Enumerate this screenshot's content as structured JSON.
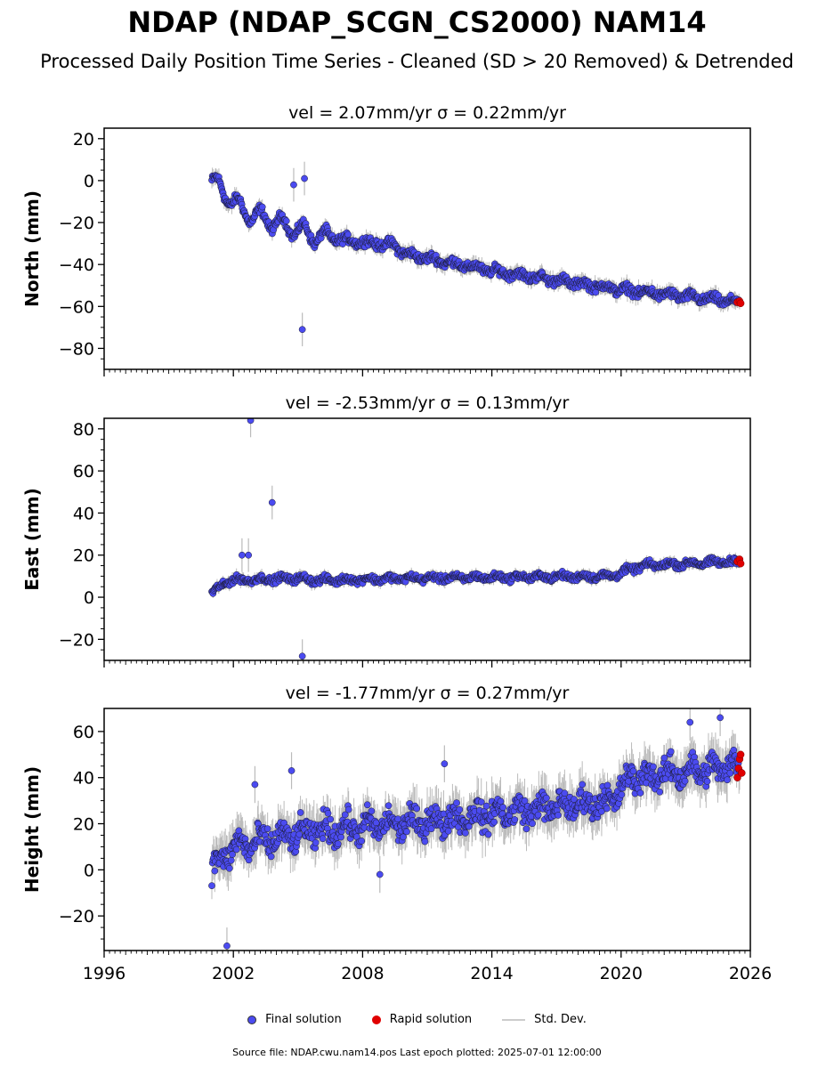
{
  "title": "NDAP (NDAP_SCGN_CS2000) NAM14",
  "subtitle": "Processed Daily Position Time Series - Cleaned (SD > 20 Removed) & Detrended",
  "legend": {
    "final_label": "Final solution",
    "rapid_label": "Rapid solution",
    "std_label": "Std. Dev."
  },
  "footer": "Source file: NDAP.cwu.nam14.pos  Last epoch plotted: 2025-07-01 12:00:00",
  "colors": {
    "final": "#4b4bf0",
    "rapid": "#e00000",
    "std": "#bbbbbb",
    "edge": "#1a1a2e"
  },
  "chart_data": [
    {
      "type": "scatter",
      "title": "vel = 2.07mm/yr   σ = 0.22mm/yr",
      "ylabel": "North (mm)",
      "xlim": [
        1996,
        2026
      ],
      "ylim": [
        -90,
        25
      ],
      "yticks": [
        "20",
        "0",
        "−20",
        "−40",
        "−60",
        "−80"
      ],
      "ytick_values": [
        20,
        0,
        -20,
        -40,
        -60,
        -80
      ],
      "trend": [
        [
          2001.0,
          0
        ],
        [
          2002.5,
          -15
        ],
        [
          2004.0,
          -20
        ],
        [
          2006.0,
          -27
        ],
        [
          2009.5,
          -31
        ],
        [
          2010.0,
          -35
        ],
        [
          2014.0,
          -43
        ],
        [
          2020.0,
          -52
        ],
        [
          2025.5,
          -58
        ]
      ],
      "scatter": 3.0,
      "outliers": [
        [
          2005.2,
          -71
        ],
        [
          2005.3,
          1
        ],
        [
          2004.8,
          -2
        ]
      ],
      "rapid": [
        [
          2025.4,
          -58
        ],
        [
          2025.5,
          -57.5
        ],
        [
          2025.55,
          -58.5
        ]
      ]
    },
    {
      "type": "scatter",
      "title": "vel = -2.53mm/yr   σ = 0.13mm/yr",
      "ylabel": "East (mm)",
      "xlim": [
        1996,
        2026
      ],
      "ylim": [
        -30,
        85
      ],
      "yticks": [
        "80",
        "60",
        "40",
        "20",
        "0",
        "−20"
      ],
      "ytick_values": [
        80,
        60,
        40,
        20,
        0,
        -20
      ],
      "trend": [
        [
          2001.0,
          2
        ],
        [
          2001.8,
          8
        ],
        [
          2005.0,
          9
        ],
        [
          2006.0,
          8
        ],
        [
          2010.0,
          9
        ],
        [
          2019.5,
          10
        ],
        [
          2021.0,
          15
        ],
        [
          2025.5,
          17
        ]
      ],
      "scatter": 2.2,
      "outliers": [
        [
          2002.8,
          84
        ],
        [
          2003.8,
          45
        ],
        [
          2005.2,
          -28
        ],
        [
          2002.4,
          20
        ],
        [
          2002.7,
          20
        ]
      ],
      "rapid": [
        [
          2025.4,
          17
        ],
        [
          2025.5,
          18
        ],
        [
          2025.55,
          16
        ]
      ]
    },
    {
      "type": "scatter",
      "title": "vel = -1.77mm/yr   σ = 0.27mm/yr",
      "ylabel": "Height (mm)",
      "xlim": [
        1996,
        2026
      ],
      "ylim": [
        -35,
        70
      ],
      "yticks": [
        "60",
        "40",
        "20",
        "0",
        "−20"
      ],
      "ytick_values": [
        60,
        40,
        20,
        0,
        -20
      ],
      "trend": [
        [
          2001.0,
          0
        ],
        [
          2002.0,
          10
        ],
        [
          2006.0,
          17
        ],
        [
          2010.0,
          20
        ],
        [
          2019.5,
          30
        ],
        [
          2020.5,
          40
        ],
        [
          2025.5,
          45
        ]
      ],
      "scatter": 8.0,
      "outliers": [
        [
          2001.7,
          -33
        ],
        [
          2003.0,
          37
        ],
        [
          2004.7,
          43
        ],
        [
          2011.8,
          46
        ],
        [
          2023.2,
          64
        ],
        [
          2024.6,
          66
        ],
        [
          2008.8,
          -2
        ]
      ],
      "rapid": [
        [
          2025.4,
          40
        ],
        [
          2025.45,
          44
        ],
        [
          2025.5,
          48
        ],
        [
          2025.55,
          50
        ],
        [
          2025.6,
          42
        ]
      ]
    }
  ],
  "xaxis": {
    "ticks": [
      "1996",
      "2002",
      "2008",
      "2014",
      "2020",
      "2026"
    ],
    "tick_values": [
      1996,
      2002,
      2008,
      2014,
      2020,
      2026
    ]
  }
}
